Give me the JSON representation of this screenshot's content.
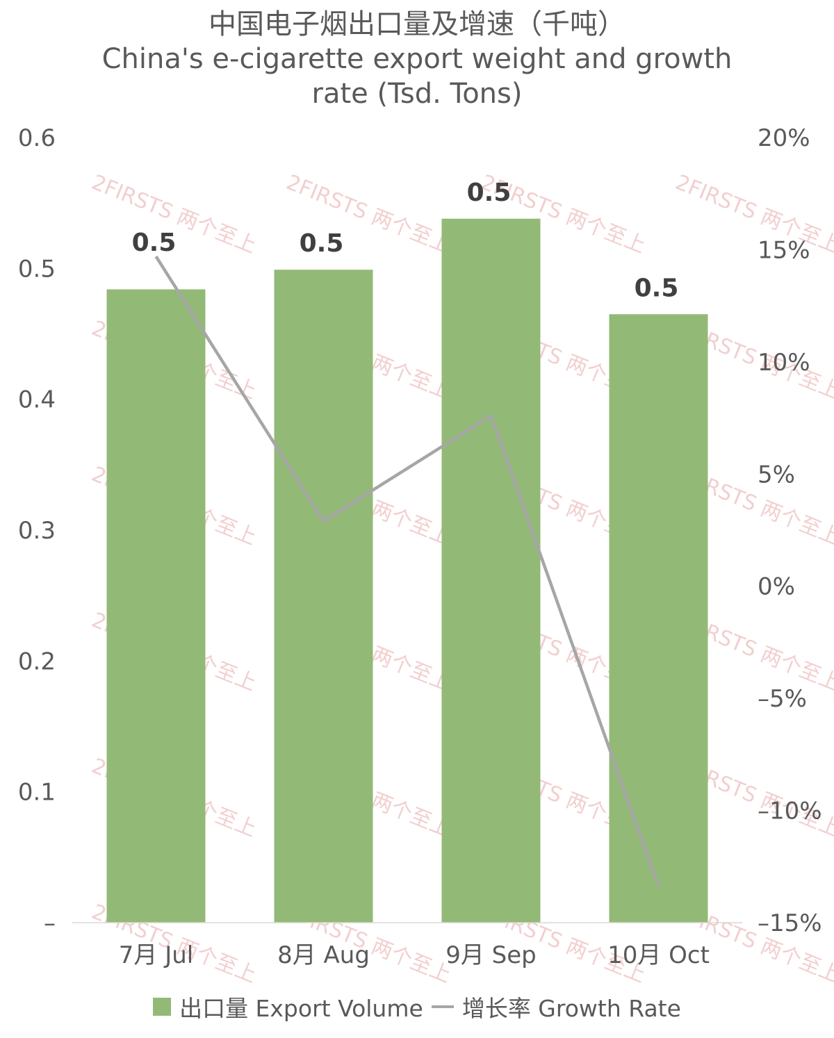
{
  "chart_data": {
    "type": "bar",
    "title": "中国电子烟出口量及增速（千吨）",
    "subtitle_lines": [
      "China's e-cigarette export weight and growth",
      "rate (Tsd. Tons)"
    ],
    "categories": [
      "7月 Jul",
      "8月 Aug",
      "9月 Sep",
      "10月 Oct"
    ],
    "series": [
      {
        "name": "出口量 Export Volume",
        "type": "bar",
        "axis": "left",
        "color": "#93b977",
        "values": [
          0.484,
          0.499,
          0.538,
          0.465
        ],
        "data_labels": [
          "0.5",
          "0.5",
          "0.5",
          "0.5"
        ]
      },
      {
        "name": "增长率 Growth Rate",
        "type": "line",
        "axis": "right",
        "color": "#a6a6a6",
        "values": [
          0.147,
          0.029,
          0.076,
          -0.134
        ]
      }
    ],
    "y_left": {
      "min": 0,
      "max": 0.6,
      "ticks": [
        {
          "v": 0.6,
          "label": "0.6"
        },
        {
          "v": 0.5,
          "label": "0.5"
        },
        {
          "v": 0.4,
          "label": "0.4"
        },
        {
          "v": 0.3,
          "label": "0.3"
        },
        {
          "v": 0.2,
          "label": "0.2"
        },
        {
          "v": 0.1,
          "label": "0.1"
        },
        {
          "v": 0,
          "label": "–"
        }
      ]
    },
    "y_right": {
      "min": -0.15,
      "max": 0.2,
      "ticks": [
        {
          "v": 0.2,
          "label": "20%"
        },
        {
          "v": 0.15,
          "label": "15%"
        },
        {
          "v": 0.1,
          "label": "10%"
        },
        {
          "v": 0.05,
          "label": "5%"
        },
        {
          "v": 0,
          "label": "0%"
        },
        {
          "v": -0.05,
          "label": "–5%"
        },
        {
          "v": -0.1,
          "label": "–10%"
        },
        {
          "v": -0.15,
          "label": "–15%"
        }
      ]
    },
    "legend": "bottom",
    "grid": false
  },
  "legend": {
    "bar_label": "出口量 Export Volume",
    "line_label": "增长率 Growth Rate"
  },
  "watermark": "2FIRSTS 两个至上"
}
